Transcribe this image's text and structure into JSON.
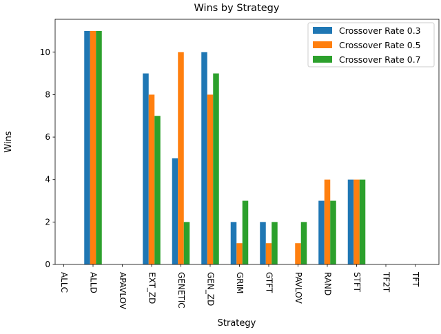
{
  "chart_data": {
    "type": "bar",
    "title": "Wins by Strategy",
    "xlabel": "Strategy",
    "ylabel": "Wins",
    "categories": [
      "ALLC",
      "ALLD",
      "APAVLOV",
      "EXT_ZD",
      "GENETIC",
      "GEN_ZD",
      "GRIM",
      "GTFT",
      "PAVLOV",
      "RAND",
      "STFT",
      "TF2T",
      "TFT"
    ],
    "series": [
      {
        "name": "Crossover Rate 0.3",
        "color": "#1f77b4",
        "values": [
          0,
          11,
          0,
          9,
          5,
          10,
          2,
          2,
          0,
          3,
          4,
          0,
          0
        ]
      },
      {
        "name": "Crossover Rate 0.5",
        "color": "#ff7f0e",
        "values": [
          0,
          11,
          0,
          8,
          10,
          8,
          1,
          1,
          1,
          4,
          4,
          0,
          0
        ]
      },
      {
        "name": "Crossover Rate 0.7",
        "color": "#2ca02c",
        "values": [
          0,
          11,
          0,
          7,
          2,
          9,
          3,
          2,
          2,
          3,
          4,
          0,
          0
        ]
      }
    ],
    "yticks": [
      "0",
      "2",
      "4",
      "6",
      "8",
      "10"
    ],
    "ylim": [
      0,
      11.55
    ],
    "legend_position": "top-right",
    "grid": false
  }
}
